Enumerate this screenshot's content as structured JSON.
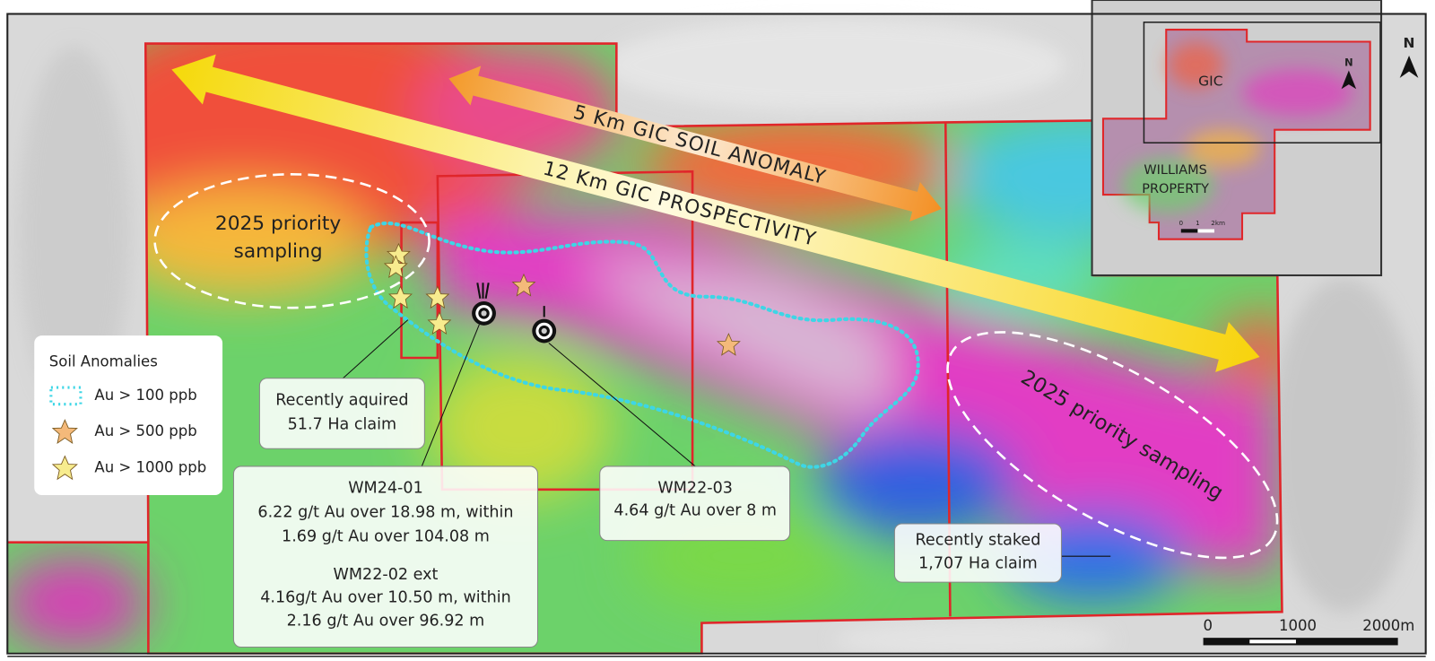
{
  "arrows": {
    "soil_anomaly": "5 Km GIC SOIL ANOMALY",
    "prospectivity": "12 Km GIC PROSPECTIVITY"
  },
  "priority_areas": {
    "west": [
      "2025 priority",
      "sampling"
    ],
    "east": "2025 priority sampling"
  },
  "legend": {
    "title": "Soil Anomalies",
    "items": [
      "Au > 100 ppb",
      "Au > 500 ppb",
      "Au > 1000 ppb"
    ]
  },
  "callouts": [
    {
      "lines": [
        "Recently aquired",
        "51.7 Ha claim"
      ]
    },
    {
      "lines": [
        "WM24-01",
        "6.22 g/t Au over 18.98 m, within",
        "1.69 g/t Au over 104.08 m",
        "WM22-02 ext",
        "4.16g/t Au over 10.50 m, within",
        "2.16 g/t Au over 96.92 m"
      ]
    },
    {
      "lines": [
        "WM22-03",
        "4.64 g/t Au over 8 m"
      ]
    },
    {
      "lines": [
        "Recently staked",
        "1,707 Ha claim"
      ]
    }
  ],
  "inset": {
    "labels": [
      "GIC",
      "WILLIAMS",
      "PROPERTY"
    ],
    "north": "N",
    "scale": [
      "0",
      "1",
      "2km"
    ]
  },
  "north": "N",
  "scale_bar": [
    "0",
    "1000",
    "2000m"
  ]
}
